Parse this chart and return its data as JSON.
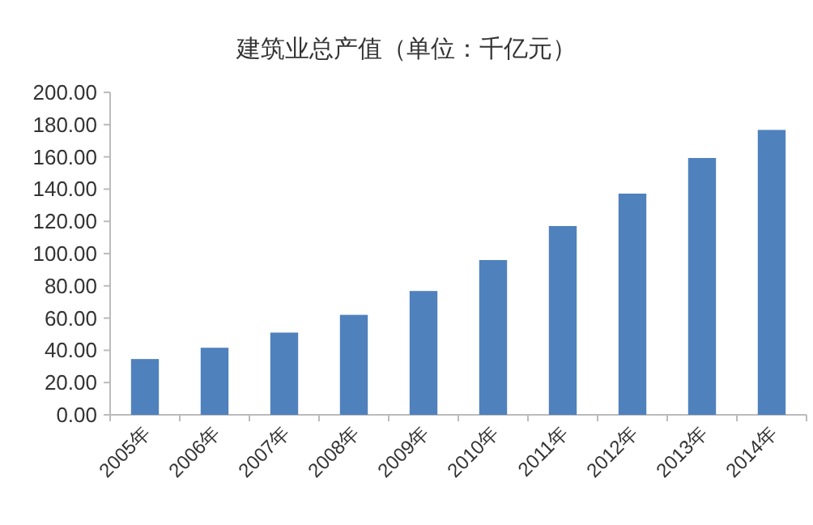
{
  "chart_data": {
    "type": "bar",
    "title": "建筑业总产值（单位：千亿元）",
    "categories": [
      "2005年",
      "2006年",
      "2007年",
      "2008年",
      "2009年",
      "2010年",
      "2011年",
      "2012年",
      "2013年",
      "2014年"
    ],
    "values": [
      34.6,
      41.6,
      51,
      62,
      76.8,
      96,
      117.1,
      137.2,
      159.3,
      176.7
    ],
    "color": "#4f81bd",
    "ylim": [
      0,
      200
    ],
    "yticks": [
      {
        "value": 0,
        "label": "0.00"
      },
      {
        "value": 20,
        "label": "20.00"
      },
      {
        "value": 40,
        "label": "40.00"
      },
      {
        "value": 60,
        "label": "60.00"
      },
      {
        "value": 80,
        "label": "80.00"
      },
      {
        "value": 100,
        "label": "100.00"
      },
      {
        "value": 120,
        "label": "120.00"
      },
      {
        "value": 140,
        "label": "140.00"
      },
      {
        "value": 160,
        "label": "160.00"
      },
      {
        "value": 180,
        "label": "180.00"
      },
      {
        "value": 200,
        "label": "200.00"
      }
    ]
  }
}
